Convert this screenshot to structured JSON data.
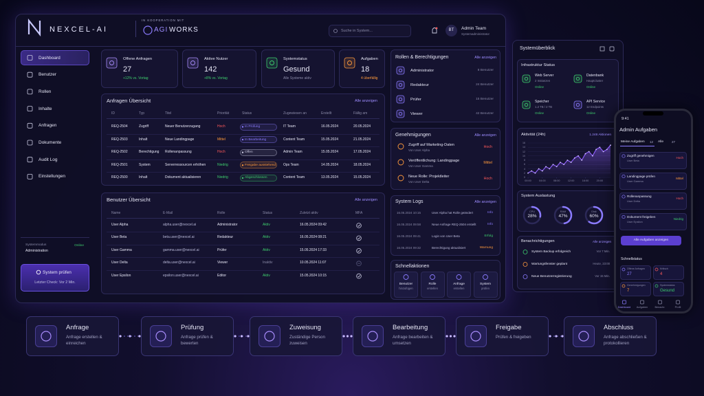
{
  "header": {
    "brand": "NEXCEL-AI",
    "coop": "IN KOOPERATION MIT",
    "partner_accent": "AGI",
    "partner": "WORKS",
    "search": "Suche in System...",
    "avatar": "BT",
    "user": "Admin Team",
    "role": "Systemadministrator"
  },
  "sidebar": {
    "items": [
      "Dashboard",
      "Benutzer",
      "Rollen",
      "Inhalte",
      "Anfragen",
      "Dokumente",
      "Audit Log",
      "Einstellungen"
    ],
    "active": 0,
    "mode_label": "Systemmodus",
    "mode": "Administration",
    "mode_status": "Online",
    "button": "System prüfen",
    "last_check": "Letzter Check: Vor 2 Min."
  },
  "kpis": [
    {
      "label": "Offene Anfragen",
      "value": 27,
      "note": "+12% vs. Vortag",
      "color": "#a78bfa",
      "note_color": "#3ecf6e"
    },
    {
      "label": "Aktive Nutzer",
      "value": 142,
      "note": "+8% vs. Vortag",
      "color": "#a78bfa",
      "note_color": "#3ecf6e"
    },
    {
      "label": "Systemstatus",
      "value": "Gesund",
      "note": "Alle Systeme aktiv",
      "color": "#3ecf6e",
      "note_color": "#8a8aa8"
    },
    {
      "label": "Aufgaben",
      "value": 18,
      "note": "4 überfällig",
      "color": "#ff9a3c",
      "note_color": "#ff9a3c"
    }
  ],
  "requests": {
    "title": "Anfragen Übersicht",
    "link": "Alle anzeigen",
    "columns": [
      "ID",
      "Typ",
      "Titel",
      "Priorität",
      "Status",
      "Zugewiesen an",
      "Erstellt",
      "Fällig am"
    ],
    "rows": [
      {
        "id": "REQ-2504",
        "type": "Zugriff",
        "title": "Neuer Benutzerzugang",
        "priority": "Hoch",
        "priority_color": "#ff5a5a",
        "status": "In Prüfung",
        "status_color": "#8b7bff",
        "team": "IT Team",
        "created": "16.05.2024",
        "due": "20.05.2024"
      },
      {
        "id": "REQ-2503",
        "type": "Inhalt",
        "title": "Neue Landingpage",
        "priority": "Mittel",
        "priority_color": "#ff9a3c",
        "status": "In Bearbeitung",
        "status_color": "#8b7bff",
        "team": "Content Team",
        "created": "15.05.2024",
        "due": "21.05.2024"
      },
      {
        "id": "REQ-2502",
        "type": "Berechtigung",
        "title": "Rollenanpassung",
        "priority": "Hoch",
        "priority_color": "#ff5a5a",
        "status": "Offen",
        "status_color": "#c9c9e0",
        "team": "Admin Team",
        "created": "15.05.2024",
        "due": "17.05.2024"
      },
      {
        "id": "REQ-2501",
        "type": "System",
        "title": "Serverressourcen erhöhen",
        "priority": "Niedrig",
        "priority_color": "#3ecf6e",
        "status": "Freigabe ausstehend",
        "status_color": "#ff9a3c",
        "team": "Ops Team",
        "created": "14.05.2024",
        "due": "18.05.2024"
      },
      {
        "id": "REQ-2500",
        "type": "Inhalt",
        "title": "Dokument aktualisieren",
        "priority": "Niedrig",
        "priority_color": "#3ecf6e",
        "status": "Abgeschlossen",
        "status_color": "#3ecf6e",
        "team": "Content Team",
        "created": "13.05.2024",
        "due": "15.05.2024"
      }
    ]
  },
  "users": {
    "title": "Benutzer Übersicht",
    "link": "Alle anzeigen",
    "columns": [
      "Name",
      "E-Mail",
      "Rolle",
      "Status",
      "Zuletzt aktiv",
      "MFA"
    ],
    "rows": [
      {
        "name": "User Alpha",
        "email": "alpha.user@nexcel.ai",
        "role": "Administrator",
        "status": "Aktiv",
        "status_color": "#3ecf6e",
        "last": "16.05.2024 09:42",
        "mfa": true
      },
      {
        "name": "User Beta",
        "email": "beta.user@nexcel.ai",
        "role": "Redakteur",
        "status": "Aktiv",
        "status_color": "#3ecf6e",
        "last": "16.05.2024 08:21",
        "mfa": true
      },
      {
        "name": "User Gamma",
        "email": "gamma.user@nexcel.ai",
        "role": "Prüfer",
        "status": "Aktiv",
        "status_color": "#3ecf6e",
        "last": "15.05.2024 17:33",
        "mfa": true
      },
      {
        "name": "User Delta",
        "email": "delta.user@nexcel.ai",
        "role": "Viewer",
        "status": "Inaktiv",
        "status_color": "#8a8aa8",
        "last": "10.05.2024 11:07",
        "mfa": false
      },
      {
        "name": "User Epsilon",
        "email": "epsilon.user@nexcel.ai",
        "role": "Editor",
        "status": "Aktiv",
        "status_color": "#3ecf6e",
        "last": "15.05.2024 10:15",
        "mfa": true
      }
    ]
  },
  "roles": {
    "title": "Rollen & Berechtigungen",
    "link": "Alle anzeigen",
    "items": [
      {
        "name": "Administrator",
        "count": "8 Benutzer"
      },
      {
        "name": "Redakteur",
        "count": "24 Benutzer"
      },
      {
        "name": "Prüfer",
        "count": "15 Benutzer"
      },
      {
        "name": "Viewer",
        "count": "42 Benutzer"
      }
    ]
  },
  "approvals": {
    "title": "Genehmigungen",
    "link": "Alle anzeigen",
    "items": [
      {
        "title": "Zugriff auf Marketing-Daten",
        "from": "Von User Alpha",
        "priority": "Hoch",
        "color": "#ff5a5a"
      },
      {
        "title": "Veröffentlichung: Landingpage",
        "from": "Von User Gamma",
        "priority": "Mittel",
        "color": "#ff9a3c"
      },
      {
        "title": "Neue Rolle: Projektleiter",
        "from": "Von User Delta",
        "priority": "Hoch",
        "color": "#ff5a5a"
      }
    ]
  },
  "logs": {
    "title": "System Logs",
    "link": "Alle anzeigen",
    "rows": [
      {
        "time": "16.05.2024 10:15",
        "message": "User Alpha hat Rolle geändert",
        "level": "Info",
        "color": "#8b7bff"
      },
      {
        "time": "16.05.2024 09:58",
        "message": "Neue Anfrage REQ-2504 erstellt",
        "level": "Info",
        "color": "#8b7bff"
      },
      {
        "time": "16.05.2024 09:41",
        "message": "Login von User Beta",
        "level": "Erfolg",
        "color": "#3ecf6e"
      },
      {
        "time": "16.05.2024 09:32",
        "message": "Berechtigung aktualisiert",
        "level": "Warnung",
        "color": "#ff9a3c"
      }
    ]
  },
  "quick": {
    "title": "Schnellaktionen",
    "items": [
      {
        "line1": "Benutzer",
        "line2": "hinzufügen"
      },
      {
        "line1": "Rolle",
        "line2": "erstellen"
      },
      {
        "line1": "Anfrage",
        "line2": "erstellen"
      },
      {
        "line1": "System",
        "line2": "prüfen"
      }
    ]
  },
  "overview": {
    "title": "Systemüberblick",
    "infra_title": "Infrastruktur Status",
    "infra": [
      {
        "name": "Web Server",
        "detail": "2 Instanzen",
        "status": "Online"
      },
      {
        "name": "Datenbank",
        "detail": "Hauptcluster",
        "status": "Online"
      },
      {
        "name": "Speicher",
        "detail": "1.2 TB / 2 TB",
        "status": "Online"
      },
      {
        "name": "API Service",
        "detail": "12 Endpoints",
        "status": "Online"
      }
    ]
  },
  "activity": {
    "title": "Aktivität (24h)",
    "total": "1.248 Aktionen",
    "color": "#8b5cf6",
    "x": [
      0,
      1,
      2,
      3,
      4,
      5,
      6,
      7,
      8,
      9,
      10,
      11,
      12,
      13,
      14,
      15,
      16,
      17,
      18,
      19,
      20,
      21,
      22,
      23
    ],
    "values": [
      2,
      3,
      2,
      4,
      3,
      5,
      4,
      6,
      5,
      7,
      6,
      8,
      7,
      9,
      10,
      8,
      11,
      12,
      10,
      13,
      14,
      12,
      13,
      15
    ],
    "xlim": [
      0,
      23
    ],
    "ylim": [
      0,
      16
    ],
    "yticks": [
      0,
      2,
      4,
      6,
      8,
      10,
      12,
      14,
      16
    ],
    "xticks": [
      {
        "value": 0,
        "label": "00:00"
      },
      {
        "value": 4,
        "label": "04:00"
      },
      {
        "value": 8,
        "label": "08:00"
      },
      {
        "value": 12,
        "label": "12:00"
      },
      {
        "value": 16,
        "label": "16:00"
      },
      {
        "value": 20,
        "label": "20:00"
      }
    ]
  },
  "utilization": {
    "title": "System Auslastung",
    "items": [
      {
        "name": "CPU",
        "value": 28,
        "label": "28%"
      },
      {
        "name": "RAM",
        "value": 47,
        "label": "47%"
      },
      {
        "name": "Disk",
        "value": 60,
        "label": "60%"
      }
    ]
  },
  "notifications": {
    "title": "Benachrichtigungen",
    "link": "Alle anzeigen",
    "items": [
      {
        "text": "System Backup erfolgreich",
        "time": "Vor 7 Min.",
        "color": "#3ecf6e"
      },
      {
        "text": "Wartungsfenster geplant",
        "time": "Heute, 23:00",
        "color": "#ff9a3c"
      },
      {
        "text": "Neue Benutzerregistrierung",
        "time": "Vor 15 Min.",
        "color": "#8b7bff"
      }
    ]
  },
  "phone": {
    "time": "9:41",
    "title": "Admin Aufgaben",
    "tabs": [
      {
        "label": "Meine Aufgaben",
        "count": 12
      },
      {
        "label": "Alle",
        "count": 27
      }
    ],
    "tasks": [
      {
        "title": "Zugriff genehmigen",
        "user": "User Beta",
        "priority": "Hoch",
        "color": "#ff5a5a"
      },
      {
        "title": "Landingpage prüfen",
        "user": "User Gamma",
        "priority": "Mittel",
        "color": "#ff9a3c"
      },
      {
        "title": "Rollenanpassung",
        "user": "User Delta",
        "priority": "Hoch",
        "color": "#ff5a5a"
      },
      {
        "title": "Dokument freigeben",
        "user": "User Epsilon",
        "priority": "Niedrig",
        "color": "#3ecf6e"
      }
    ],
    "button": "Alle Aufgaben anzeigen",
    "status_title": "Schnellstatus",
    "status": [
      {
        "label": "Offene Anfragen",
        "value": 27,
        "color": "#8b7bff"
      },
      {
        "label": "Kritisch",
        "value": 4,
        "color": "#ff5a5a"
      },
      {
        "label": "Genehmigungen",
        "value": 7,
        "color": "#ff9a3c"
      },
      {
        "label": "Systemstatus",
        "value": "Gesund",
        "color": "#3ecf6e"
      }
    ],
    "nav": [
      "Dashboard",
      "Aufgaben",
      "Benachr.",
      "Profil"
    ]
  },
  "workflow": [
    {
      "title": "Anfrage",
      "text": "Anfrage erstellen & einreichen"
    },
    {
      "title": "Prüfung",
      "text": "Anfrage prüfen & bewerten"
    },
    {
      "title": "Zuweisung",
      "text": "Zuständige Person zuweisen"
    },
    {
      "title": "Bearbeitung",
      "text": "Anfrage bearbeiten & umsetzen"
    },
    {
      "title": "Freigabe",
      "text": "Prüfen & freigeben"
    },
    {
      "title": "Abschluss",
      "text": "Anfrage abschließen & protokollieren"
    }
  ]
}
